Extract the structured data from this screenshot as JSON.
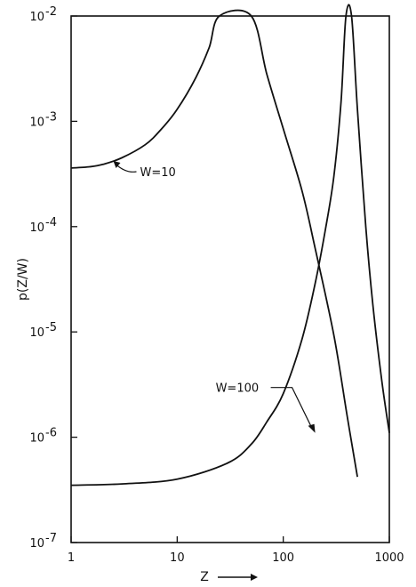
{
  "chart_data": {
    "type": "line",
    "xlabel": "Z",
    "ylabel": "p(Z/W)",
    "x_scale": "log",
    "y_scale": "log",
    "xlim": [
      1,
      1000
    ],
    "ylim": [
      1e-07,
      0.01
    ],
    "grid": false,
    "x_ticks": [
      {
        "value": 1,
        "label": "1"
      },
      {
        "value": 10,
        "label": "10"
      },
      {
        "value": 100,
        "label": "100"
      },
      {
        "value": 1000,
        "label": "1000"
      }
    ],
    "y_ticks": [
      {
        "value": 0.01,
        "mant": "10",
        "exp": "-2"
      },
      {
        "value": 0.001,
        "mant": "10",
        "exp": "-3"
      },
      {
        "value": 0.0001,
        "mant": "10",
        "exp": "-4"
      },
      {
        "value": 1e-05,
        "mant": "10",
        "exp": "-5"
      },
      {
        "value": 1e-06,
        "mant": "10",
        "exp": "-6"
      },
      {
        "value": 1e-07,
        "mant": "10",
        "exp": "-7"
      }
    ],
    "series": [
      {
        "name": "W=10",
        "points": [
          [
            1,
            0.00036
          ],
          [
            1.5,
            0.00037
          ],
          [
            2,
            0.00039
          ],
          [
            3,
            0.00045
          ],
          [
            5,
            0.0006
          ],
          [
            7,
            0.00083
          ],
          [
            10,
            0.0013
          ],
          [
            15,
            0.0026
          ],
          [
            20,
            0.005
          ],
          [
            25,
            0.01
          ],
          [
            50,
            0.01
          ],
          [
            70,
            0.0028
          ],
          [
            100,
            0.00085
          ],
          [
            150,
            0.00022
          ],
          [
            200,
            6.2e-05
          ],
          [
            300,
            9.3e-06
          ],
          [
            400,
            1.6e-06
          ],
          [
            500,
            4.2e-07
          ]
        ]
      },
      {
        "name": "W=100",
        "points": [
          [
            1,
            3.5e-07
          ],
          [
            3,
            3.6e-07
          ],
          [
            10,
            4e-07
          ],
          [
            30,
            5.7e-07
          ],
          [
            50,
            8.6e-07
          ],
          [
            70,
            1.4e-06
          ],
          [
            100,
            2.6e-06
          ],
          [
            150,
            8.5e-06
          ],
          [
            200,
            2.9e-05
          ],
          [
            250,
            9.5e-05
          ],
          [
            300,
            0.0003
          ],
          [
            350,
            0.0015
          ],
          [
            390,
            0.01
          ],
          [
            440,
            0.01
          ],
          [
            500,
            0.0013
          ],
          [
            600,
            0.0001
          ],
          [
            700,
            1.8e-05
          ],
          [
            850,
            3.4e-06
          ],
          [
            1000,
            1.1e-06
          ]
        ]
      }
    ],
    "annotations": [
      {
        "text": "W=10",
        "x": 2.5,
        "y": 0.00042
      },
      {
        "text": "W=100",
        "x": 200,
        "y": 1.1e-06
      }
    ]
  }
}
